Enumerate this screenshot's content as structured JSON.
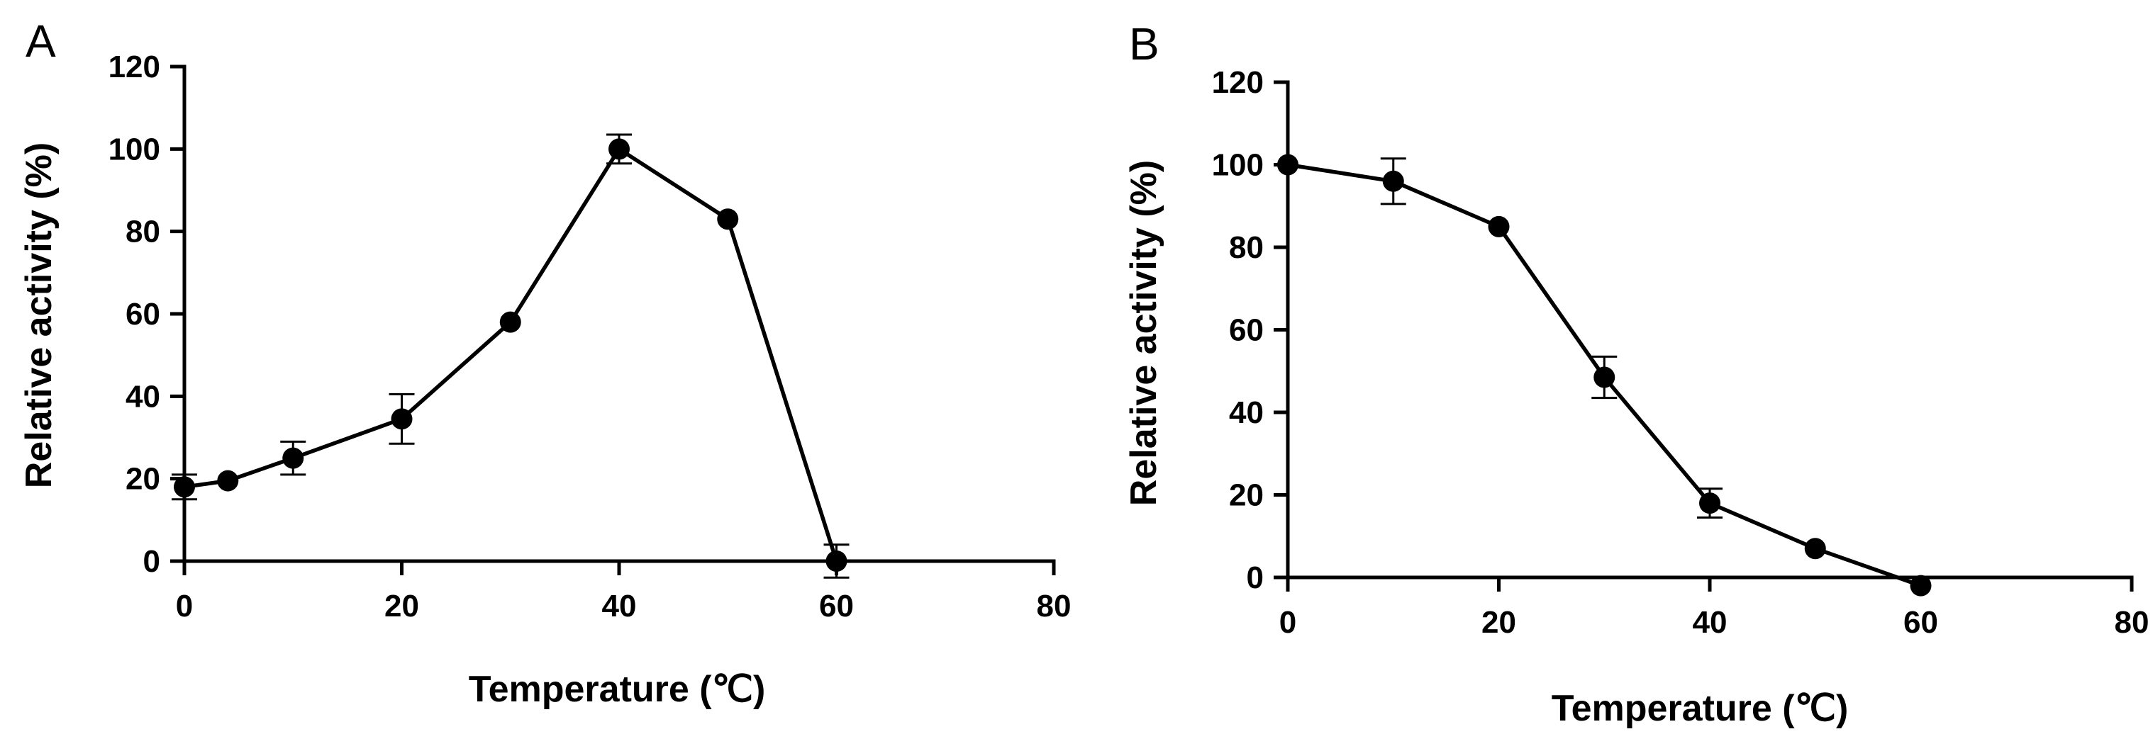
{
  "chart_data": [
    {
      "panel": "A",
      "type": "line",
      "xlabel": "Temperature (℃)",
      "ylabel": "Relative activity (%)",
      "xlim": [
        0,
        80
      ],
      "ylim": [
        0,
        120
      ],
      "xticks": [
        0,
        20,
        40,
        60,
        80
      ],
      "yticks": [
        0,
        20,
        40,
        60,
        80,
        100,
        120
      ],
      "grid": false,
      "series": [
        {
          "x": [
            0,
            4,
            10,
            20,
            30,
            40,
            50,
            60
          ],
          "y": [
            18,
            19.5,
            25,
            34.5,
            58,
            100,
            83,
            0
          ],
          "error": [
            3,
            0.5,
            4,
            6,
            0.5,
            3.5,
            0.5,
            4
          ]
        }
      ]
    },
    {
      "panel": "B",
      "type": "line",
      "xlabel": "Temperature  (℃)",
      "ylabel": "Relative activity (%)",
      "xlim": [
        0,
        80
      ],
      "ylim": [
        0,
        120
      ],
      "xticks": [
        0,
        20,
        40,
        60,
        80
      ],
      "yticks": [
        0,
        20,
        40,
        60,
        80,
        100,
        120
      ],
      "grid": false,
      "series": [
        {
          "x": [
            0,
            10,
            20,
            30,
            40,
            50,
            60
          ],
          "y": [
            100,
            96,
            85,
            48.5,
            18,
            7,
            -2
          ],
          "error": [
            0.5,
            5.5,
            0.5,
            5,
            3.5,
            0.5,
            0.5
          ]
        }
      ]
    }
  ]
}
